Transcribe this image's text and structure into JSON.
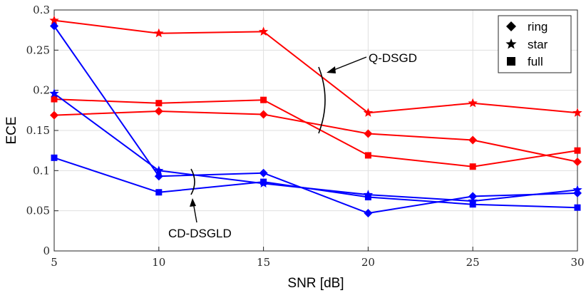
{
  "chart_data": {
    "type": "line",
    "xlabel": "SNR [dB]",
    "ylabel": "ECE",
    "x": [
      5,
      10,
      15,
      20,
      25,
      30
    ],
    "xlim": [
      5,
      30
    ],
    "ylim": [
      0,
      0.3
    ],
    "xticks": [
      5,
      10,
      15,
      20,
      25,
      30
    ],
    "xtick_labels": [
      "5",
      "10",
      "15",
      "20",
      "25",
      "30"
    ],
    "yticks": [
      0,
      0.05,
      0.1,
      0.15,
      0.2,
      0.25,
      0.3
    ],
    "ytick_labels": [
      "0",
      "0.05",
      "0.1",
      "0.15",
      "0.2",
      "0.25",
      "0.3"
    ],
    "grid": true,
    "legend": {
      "position": "top-right",
      "entries": [
        {
          "label": "ring",
          "marker": "diamond"
        },
        {
          "label": "star",
          "marker": "star"
        },
        {
          "label": "full",
          "marker": "square"
        }
      ]
    },
    "series": [
      {
        "name": "Q-DSGD star",
        "group": "Q-DSGD",
        "topology": "star",
        "color": "#ff0000",
        "marker": "star",
        "values": [
          0.287,
          0.271,
          0.273,
          0.172,
          0.184,
          0.172
        ]
      },
      {
        "name": "Q-DSGD full",
        "group": "Q-DSGD",
        "topology": "full",
        "color": "#ff0000",
        "marker": "square",
        "values": [
          0.189,
          0.184,
          0.188,
          0.119,
          0.105,
          0.125
        ]
      },
      {
        "name": "Q-DSGD ring",
        "group": "Q-DSGD",
        "topology": "ring",
        "color": "#ff0000",
        "marker": "diamond",
        "values": [
          0.169,
          0.174,
          0.17,
          0.146,
          0.138,
          0.111
        ]
      },
      {
        "name": "CD-DSGLD ring",
        "group": "CD-DSGLD",
        "topology": "ring",
        "color": "#0000ff",
        "marker": "diamond",
        "values": [
          0.28,
          0.093,
          0.097,
          0.047,
          0.068,
          0.072
        ]
      },
      {
        "name": "CD-DSGLD star",
        "group": "CD-DSGLD",
        "topology": "star",
        "color": "#0000ff",
        "marker": "star",
        "values": [
          0.196,
          0.1,
          0.084,
          0.07,
          0.062,
          0.076
        ]
      },
      {
        "name": "CD-DSGLD full",
        "group": "CD-DSGLD",
        "topology": "full",
        "color": "#0000ff",
        "marker": "square",
        "values": [
          0.116,
          0.073,
          0.086,
          0.067,
          0.058,
          0.054
        ]
      }
    ],
    "annotations": [
      {
        "text": "Q-DSGD",
        "target_group": "Q-DSGD"
      },
      {
        "text": "CD-DSGLD",
        "target_group": "CD-DSGLD"
      }
    ]
  }
}
